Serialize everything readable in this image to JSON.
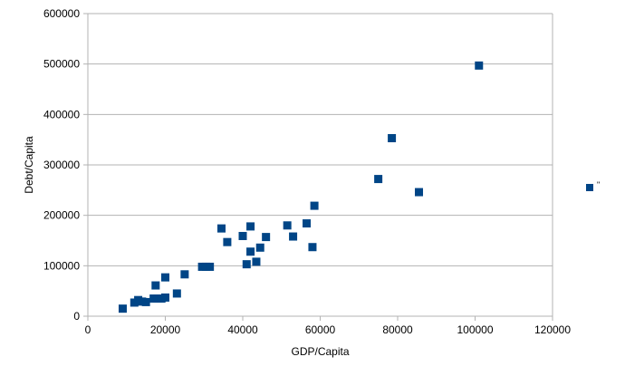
{
  "chart_data": {
    "type": "scatter",
    "title": "",
    "xlabel": "GDP/Capita",
    "ylabel": "Debt/Capita",
    "xlim": [
      0,
      120000
    ],
    "ylim": [
      0,
      600000
    ],
    "x_ticks": [
      0,
      20000,
      40000,
      60000,
      80000,
      100000,
      120000
    ],
    "y_ticks": [
      0,
      100000,
      200000,
      300000,
      400000,
      500000,
      600000
    ],
    "grid": "horizontal",
    "legend": "right",
    "marker_color": "#004586",
    "series": [
      {
        "name": "\"",
        "points": [
          [
            9000,
            15000
          ],
          [
            12000,
            27000
          ],
          [
            13000,
            32000
          ],
          [
            14000,
            29000
          ],
          [
            15000,
            28000
          ],
          [
            17000,
            35000
          ],
          [
            17500,
            61000
          ],
          [
            18000,
            35000
          ],
          [
            19000,
            35000
          ],
          [
            20000,
            37000
          ],
          [
            20000,
            77000
          ],
          [
            23000,
            45000
          ],
          [
            25000,
            83000
          ],
          [
            29500,
            98000
          ],
          [
            30500,
            98000
          ],
          [
            31500,
            98000
          ],
          [
            34500,
            174000
          ],
          [
            36000,
            147000
          ],
          [
            40000,
            159000
          ],
          [
            41000,
            103000
          ],
          [
            42000,
            128000
          ],
          [
            42000,
            178000
          ],
          [
            43500,
            108000
          ],
          [
            44500,
            136000
          ],
          [
            46000,
            157000
          ],
          [
            51500,
            180000
          ],
          [
            53000,
            158000
          ],
          [
            56500,
            184000
          ],
          [
            58000,
            137000
          ],
          [
            58500,
            219000
          ],
          [
            75000,
            272000
          ],
          [
            78500,
            353000
          ],
          [
            85500,
            246000
          ],
          [
            101000,
            497000
          ]
        ]
      }
    ]
  }
}
